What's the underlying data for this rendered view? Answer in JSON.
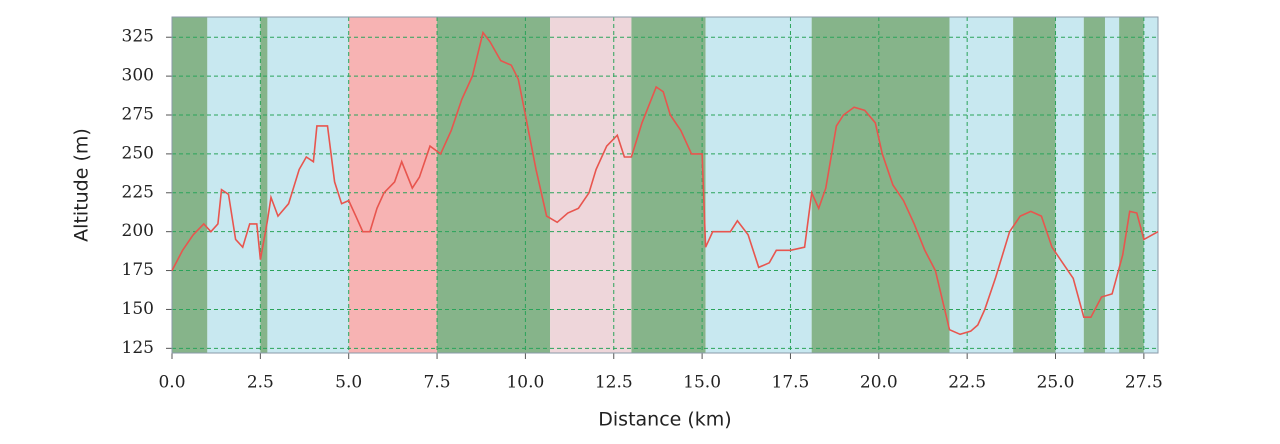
{
  "chart_data": {
    "type": "line",
    "x_label": "Distance (km)",
    "y_label": "Altitude (m)",
    "x": [
      0.0,
      0.3,
      0.6,
      0.9,
      1.1,
      1.3,
      1.4,
      1.6,
      1.8,
      2.0,
      2.2,
      2.4,
      2.5,
      2.7,
      2.8,
      3.0,
      3.3,
      3.6,
      3.8,
      4.0,
      4.1,
      4.4,
      4.6,
      4.8,
      5.0,
      5.2,
      5.4,
      5.6,
      5.8,
      6.0,
      6.3,
      6.5,
      6.8,
      7.0,
      7.3,
      7.6,
      7.9,
      8.2,
      8.5,
      8.8,
      9.0,
      9.3,
      9.6,
      9.8,
      10.0,
      10.3,
      10.6,
      10.9,
      11.2,
      11.5,
      11.8,
      12.0,
      12.3,
      12.6,
      12.8,
      13.0,
      13.3,
      13.7,
      13.9,
      14.1,
      14.4,
      14.7,
      15.0,
      15.1,
      15.3,
      15.8,
      16.0,
      16.3,
      16.6,
      16.9,
      17.1,
      17.5,
      17.9,
      18.1,
      18.3,
      18.5,
      18.8,
      19.0,
      19.3,
      19.6,
      19.9,
      20.1,
      20.4,
      20.7,
      21.0,
      21.3,
      21.6,
      22.0,
      22.3,
      22.6,
      22.8,
      23.0,
      23.3,
      23.7,
      24.0,
      24.3,
      24.6,
      24.9,
      25.2,
      25.5,
      25.8,
      26.0,
      26.3,
      26.6,
      26.9,
      27.1,
      27.3,
      27.5,
      27.9
    ],
    "values": [
      175,
      188,
      198,
      205,
      200,
      205,
      227,
      224,
      195,
      190,
      205,
      205,
      182,
      207,
      222,
      210,
      218,
      240,
      248,
      245,
      268,
      268,
      232,
      218,
      220,
      210,
      200,
      200,
      215,
      225,
      232,
      245,
      228,
      235,
      255,
      250,
      265,
      285,
      300,
      328,
      322,
      310,
      307,
      298,
      275,
      240,
      210,
      206,
      212,
      215,
      225,
      240,
      255,
      262,
      248,
      248,
      270,
      293,
      290,
      275,
      265,
      250,
      250,
      190,
      200,
      200,
      207,
      198,
      177,
      180,
      188,
      188,
      190,
      225,
      215,
      228,
      268,
      275,
      280,
      278,
      270,
      250,
      230,
      220,
      205,
      188,
      175,
      137,
      134,
      136,
      140,
      150,
      170,
      200,
      210,
      213,
      210,
      190,
      180,
      170,
      145,
      145,
      158,
      160,
      185,
      213,
      212,
      195,
      200
    ],
    "color": "#e8554e",
    "bands": [
      {
        "start": 0,
        "end": 1.0,
        "color": "#86b48a"
      },
      {
        "start": 1.0,
        "end": 2.5,
        "color": "#c8e8f0"
      },
      {
        "start": 2.5,
        "end": 2.7,
        "color": "#86b48a"
      },
      {
        "start": 2.7,
        "end": 5.0,
        "color": "#c8e8f0"
      },
      {
        "start": 5.0,
        "end": 7.5,
        "color": "#f7b3b3"
      },
      {
        "start": 7.5,
        "end": 10.7,
        "color": "#86b48a"
      },
      {
        "start": 10.7,
        "end": 13.0,
        "color": "#eed6da"
      },
      {
        "start": 13.0,
        "end": 15.1,
        "color": "#86b48a"
      },
      {
        "start": 15.1,
        "end": 18.1,
        "color": "#c8e8f0"
      },
      {
        "start": 18.1,
        "end": 22.0,
        "color": "#86b48a"
      },
      {
        "start": 22.0,
        "end": 23.8,
        "color": "#c8e8f0"
      },
      {
        "start": 23.8,
        "end": 25.0,
        "color": "#86b48a"
      },
      {
        "start": 25.0,
        "end": 25.8,
        "color": "#c8e8f0"
      },
      {
        "start": 25.8,
        "end": 26.4,
        "color": "#86b48a"
      },
      {
        "start": 26.4,
        "end": 26.8,
        "color": "#c8e8f0"
      },
      {
        "start": 26.8,
        "end": 27.5,
        "color": "#86b48a"
      },
      {
        "start": 27.5,
        "end": 27.9,
        "color": "#c8e8f0"
      }
    ],
    "xlim": [
      0,
      27.9
    ],
    "ylim": [
      122,
      338
    ],
    "xticks": [
      {
        "value": 0,
        "label": "0.0"
      },
      {
        "value": 2.5,
        "label": "2.5"
      },
      {
        "value": 5,
        "label": "5.0"
      },
      {
        "value": 7.5,
        "label": "7.5"
      },
      {
        "value": 10,
        "label": "10.0"
      },
      {
        "value": 12.5,
        "label": "12.5"
      },
      {
        "value": 15,
        "label": "15.0"
      },
      {
        "value": 17.5,
        "label": "17.5"
      },
      {
        "value": 20,
        "label": "20.0"
      },
      {
        "value": 22.5,
        "label": "22.5"
      },
      {
        "value": 25,
        "label": "25.0"
      },
      {
        "value": 27.5,
        "label": "27.5"
      }
    ],
    "yticks": [
      125,
      150,
      175,
      200,
      225,
      250,
      275,
      300,
      325
    ],
    "grid": true
  }
}
